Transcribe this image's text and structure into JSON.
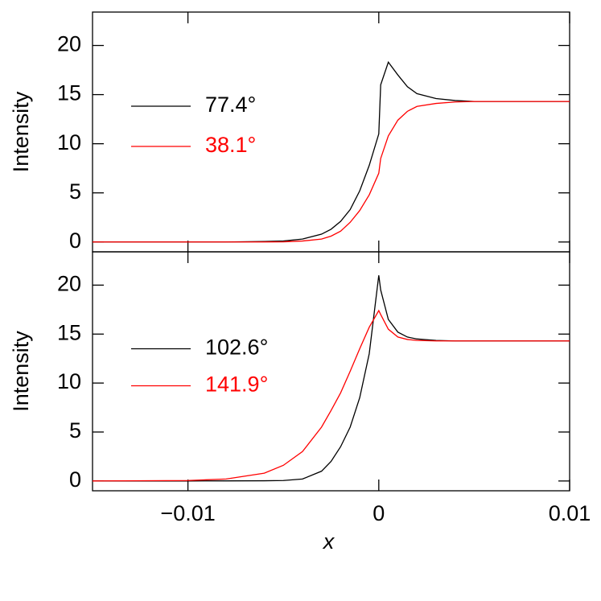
{
  "chart_data": [
    {
      "type": "line",
      "ylabel": "Intensity",
      "legend": "left",
      "xlim": [
        -0.015,
        0.01
      ],
      "ylim": [
        -1,
        23.4
      ],
      "xticks": [
        {
          "value": -0.01,
          "label": "−0.01"
        },
        0,
        0.01
      ],
      "yticks": [
        0,
        5,
        10,
        15,
        20
      ],
      "x": [
        -0.015,
        -0.01,
        -0.008,
        -0.006,
        -0.005,
        -0.004,
        -0.003,
        -0.0025,
        -0.002,
        -0.0015,
        -0.001,
        -0.0005,
        0,
        0.0001,
        0.0005,
        0.001,
        0.0015,
        0.002,
        0.003,
        0.004,
        0.005,
        0.007,
        0.01
      ],
      "series": [
        {
          "name": "77.4°",
          "color": "#000000",
          "values": [
            0,
            0,
            0,
            0.05,
            0.1,
            0.3,
            0.8,
            1.3,
            2.1,
            3.3,
            5.2,
            7.8,
            11,
            16,
            18.3,
            17,
            15.8,
            15.1,
            14.6,
            14.4,
            14.3,
            14.3,
            14.3
          ]
        },
        {
          "name": "38.1°",
          "color": "#ff0000",
          "values": [
            0,
            0,
            0,
            0,
            0.02,
            0.1,
            0.3,
            0.6,
            1.1,
            2,
            3.2,
            4.8,
            7,
            8.5,
            10.8,
            12.4,
            13.3,
            13.8,
            14.1,
            14.25,
            14.3,
            14.3,
            14.3
          ]
        }
      ]
    },
    {
      "type": "line",
      "ylabel": "Intensity",
      "xlabel": "x",
      "legend": "left",
      "xlim": [
        -0.015,
        0.01
      ],
      "ylim": [
        -1,
        23.4
      ],
      "xticks": [
        {
          "value": -0.01,
          "label": "−0.01"
        },
        0,
        0.01
      ],
      "yticks": [
        0,
        5,
        10,
        15,
        20
      ],
      "x": [
        -0.015,
        -0.01,
        -0.008,
        -0.006,
        -0.005,
        -0.004,
        -0.003,
        -0.0025,
        -0.002,
        -0.0015,
        -0.001,
        -0.0005,
        0,
        0.0001,
        0.0005,
        0.001,
        0.0015,
        0.002,
        0.003,
        0.004,
        0.005,
        0.007,
        0.01
      ],
      "series": [
        {
          "name": "102.6°",
          "color": "#000000",
          "values": [
            0,
            0,
            0.01,
            0.02,
            0.05,
            0.2,
            1,
            2,
            3.5,
            5.5,
            8.5,
            13,
            21,
            19.5,
            16.5,
            15.2,
            14.7,
            14.5,
            14.35,
            14.3,
            14.3,
            14.3,
            14.3
          ]
        },
        {
          "name": "141.9°",
          "color": "#ff0000",
          "values": [
            0,
            0.05,
            0.2,
            0.8,
            1.6,
            3,
            5.5,
            7.2,
            9,
            11.2,
            13.5,
            15.7,
            17.4,
            17,
            15.5,
            14.7,
            14.45,
            14.35,
            14.3,
            14.3,
            14.3,
            14.3,
            14.3
          ]
        }
      ]
    }
  ]
}
